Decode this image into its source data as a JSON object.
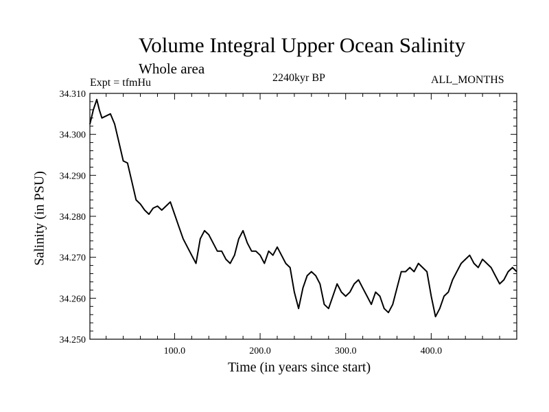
{
  "chart_data": {
    "type": "line",
    "title": "Volume Integral Upper Ocean Salinity",
    "subtitle": "Whole area",
    "experiment": "Expt = tfmHu",
    "period": "2240kyr BP",
    "months": "ALL_MONTHS",
    "xlabel": "Time (in years since start)",
    "ylabel": "Salinity (in PSU)",
    "xlim": [
      1,
      500
    ],
    "ylim": [
      34.25,
      34.31
    ],
    "x_ticks": [
      100,
      200,
      300,
      400
    ],
    "x_tick_labels": [
      "100.0",
      "200.0",
      "300.0",
      "400.0"
    ],
    "y_ticks": [
      34.25,
      34.26,
      34.27,
      34.28,
      34.29,
      34.3,
      34.31
    ],
    "y_tick_labels": [
      "34.250",
      "34.260",
      "34.270",
      "34.280",
      "34.290",
      "34.300",
      "34.310"
    ],
    "series": [
      {
        "name": "salinity",
        "x": [
          1,
          5,
          9,
          12,
          15,
          20,
          25,
          30,
          35,
          40,
          45,
          50,
          55,
          60,
          65,
          70,
          75,
          80,
          85,
          90,
          95,
          100,
          105,
          110,
          115,
          120,
          125,
          130,
          135,
          140,
          145,
          150,
          155,
          160,
          165,
          170,
          175,
          180,
          185,
          190,
          195,
          200,
          205,
          210,
          215,
          220,
          225,
          230,
          235,
          240,
          245,
          250,
          255,
          260,
          265,
          270,
          275,
          280,
          285,
          290,
          295,
          300,
          305,
          310,
          315,
          320,
          325,
          330,
          335,
          340,
          345,
          350,
          355,
          360,
          365,
          370,
          375,
          380,
          385,
          390,
          395,
          400,
          405,
          410,
          415,
          420,
          425,
          430,
          435,
          440,
          445,
          450,
          455,
          460,
          465,
          470,
          475,
          480,
          485,
          490,
          495,
          500
        ],
        "values": [
          34.3025,
          34.306,
          34.3085,
          34.306,
          34.304,
          34.3045,
          34.305,
          34.3025,
          34.298,
          34.2935,
          34.293,
          34.2885,
          34.284,
          34.283,
          34.2815,
          34.2805,
          34.282,
          34.2825,
          34.2815,
          34.2825,
          34.2835,
          34.2805,
          34.2775,
          34.2745,
          34.2725,
          34.2705,
          34.2685,
          34.2745,
          34.2765,
          34.2755,
          34.2735,
          34.2715,
          34.2715,
          34.2695,
          34.2685,
          34.2705,
          34.2745,
          34.2765,
          34.2735,
          34.2715,
          34.2715,
          34.2705,
          34.2685,
          34.2715,
          34.2705,
          34.2725,
          34.2705,
          34.2685,
          34.2675,
          34.2615,
          34.2575,
          34.2625,
          34.2655,
          34.2665,
          34.2655,
          34.2635,
          34.2585,
          34.2575,
          34.2605,
          34.2635,
          34.2615,
          34.2605,
          34.2615,
          34.2635,
          34.2645,
          34.2625,
          34.2605,
          34.2585,
          34.2615,
          34.2605,
          34.2575,
          34.2565,
          34.2585,
          34.2625,
          34.2665,
          34.2665,
          34.2675,
          34.2665,
          34.2685,
          34.2675,
          34.2665,
          34.2605,
          34.2555,
          34.2575,
          34.2605,
          34.2615,
          34.2645,
          34.2665,
          34.2685,
          34.2695,
          34.2705,
          34.2685,
          34.2675,
          34.2695,
          34.2685,
          34.2675,
          34.2655,
          34.2635,
          34.2645,
          34.2665,
          34.2675,
          34.2665
        ]
      }
    ]
  }
}
